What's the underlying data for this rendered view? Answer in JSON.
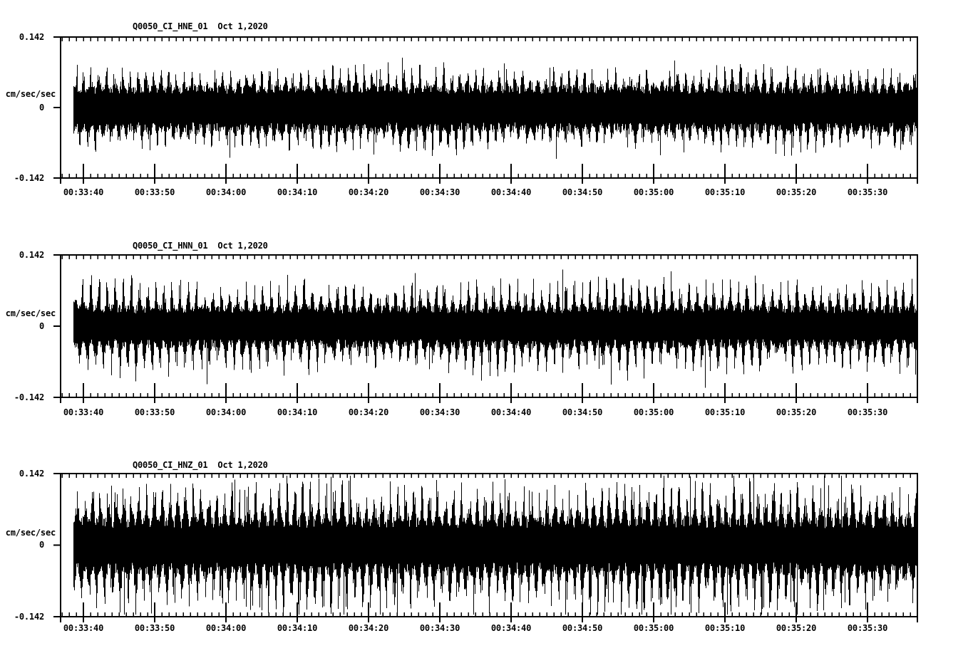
{
  "page": {
    "background": "#ffffff",
    "ink": "#000000"
  },
  "chart_data": [
    {
      "type": "line",
      "subtype": "seismogram",
      "title": "Q0050_CI_HNE_01  Oct 1,2020",
      "station": "Q0050",
      "network": "CI",
      "channel": "HNE",
      "location": "01",
      "date": "Oct 1,2020",
      "ylabel": "cm/sec/sec",
      "ylim": [
        -0.142,
        0.142
      ],
      "y_tick_labels": [
        "0.142",
        "0",
        "-0.142"
      ],
      "x_major_tick_seconds": 10,
      "x_minor_tick_seconds": 1,
      "x_tick_labels": [
        "00:33:40",
        "00:33:50",
        "00:34:00",
        "00:34:10",
        "00:34:20",
        "00:34:30",
        "00:34:40",
        "00:34:50",
        "00:35:00",
        "00:35:10",
        "00:35:20",
        "00:35:30"
      ],
      "waveform": {
        "peak_amplitude": 0.086,
        "core_amplitude": 0.037,
        "burst_period_s": 1.1,
        "burst_sharpness": 3,
        "down_asymmetry": 1.08,
        "spike_probability": 0.006,
        "seed": 101,
        "envelope_max_cm_s2": [
          0.08,
          0.083,
          0.079,
          0.084,
          0.086,
          0.081,
          0.084,
          0.08,
          0.078,
          0.082,
          0.08,
          0.083
        ]
      }
    },
    {
      "type": "line",
      "subtype": "seismogram",
      "title": "Q0050_CI_HNN_01  Oct 1,2020",
      "station": "Q0050",
      "network": "CI",
      "channel": "HNN",
      "location": "01",
      "date": "Oct 1,2020",
      "ylabel": "cm/sec/sec",
      "ylim": [
        -0.142,
        0.142
      ],
      "y_tick_labels": [
        "0.142",
        "0",
        "-0.142"
      ],
      "x_major_tick_seconds": 10,
      "x_minor_tick_seconds": 1,
      "x_tick_labels": [
        "00:33:40",
        "00:33:50",
        "00:34:00",
        "00:34:10",
        "00:34:20",
        "00:34:30",
        "00:34:40",
        "00:34:50",
        "00:35:00",
        "00:35:10",
        "00:35:20",
        "00:35:30"
      ],
      "waveform": {
        "peak_amplitude": 0.11,
        "core_amplitude": 0.034,
        "burst_period_s": 1.15,
        "burst_sharpness": 3,
        "down_asymmetry": 1.02,
        "spike_probability": 0.005,
        "seed": 202,
        "envelope_max_cm_s2": [
          0.095,
          0.092,
          0.096,
          0.094,
          0.098,
          0.093,
          0.096,
          0.094,
          0.092,
          0.11,
          0.096,
          0.098
        ]
      }
    },
    {
      "type": "line",
      "subtype": "seismogram",
      "title": "Q0050_CI_HNZ_01  Oct 1,2020",
      "station": "Q0050",
      "network": "CI",
      "channel": "HNZ",
      "location": "01",
      "date": "Oct 1,2020",
      "ylabel": "cm/sec/sec",
      "ylim": [
        -0.142,
        0.142
      ],
      "y_tick_labels": [
        "0.142",
        "0",
        "-0.142"
      ],
      "x_major_tick_seconds": 10,
      "x_minor_tick_seconds": 1,
      "x_tick_labels": [
        "00:33:40",
        "00:33:50",
        "00:34:00",
        "00:34:10",
        "00:34:20",
        "00:34:30",
        "00:34:40",
        "00:34:50",
        "00:35:00",
        "00:35:10",
        "00:35:20",
        "00:35:30"
      ],
      "waveform": {
        "peak_amplitude": 0.13,
        "core_amplitude": 0.045,
        "burst_period_s": 1.1,
        "burst_sharpness": 2,
        "down_asymmetry": 1.03,
        "spike_probability": 0.02,
        "seed": 303,
        "envelope_max_cm_s2": [
          0.125,
          0.128,
          0.124,
          0.13,
          0.127,
          0.125,
          0.128,
          0.126,
          0.124,
          0.128,
          0.125,
          0.127
        ]
      }
    }
  ]
}
